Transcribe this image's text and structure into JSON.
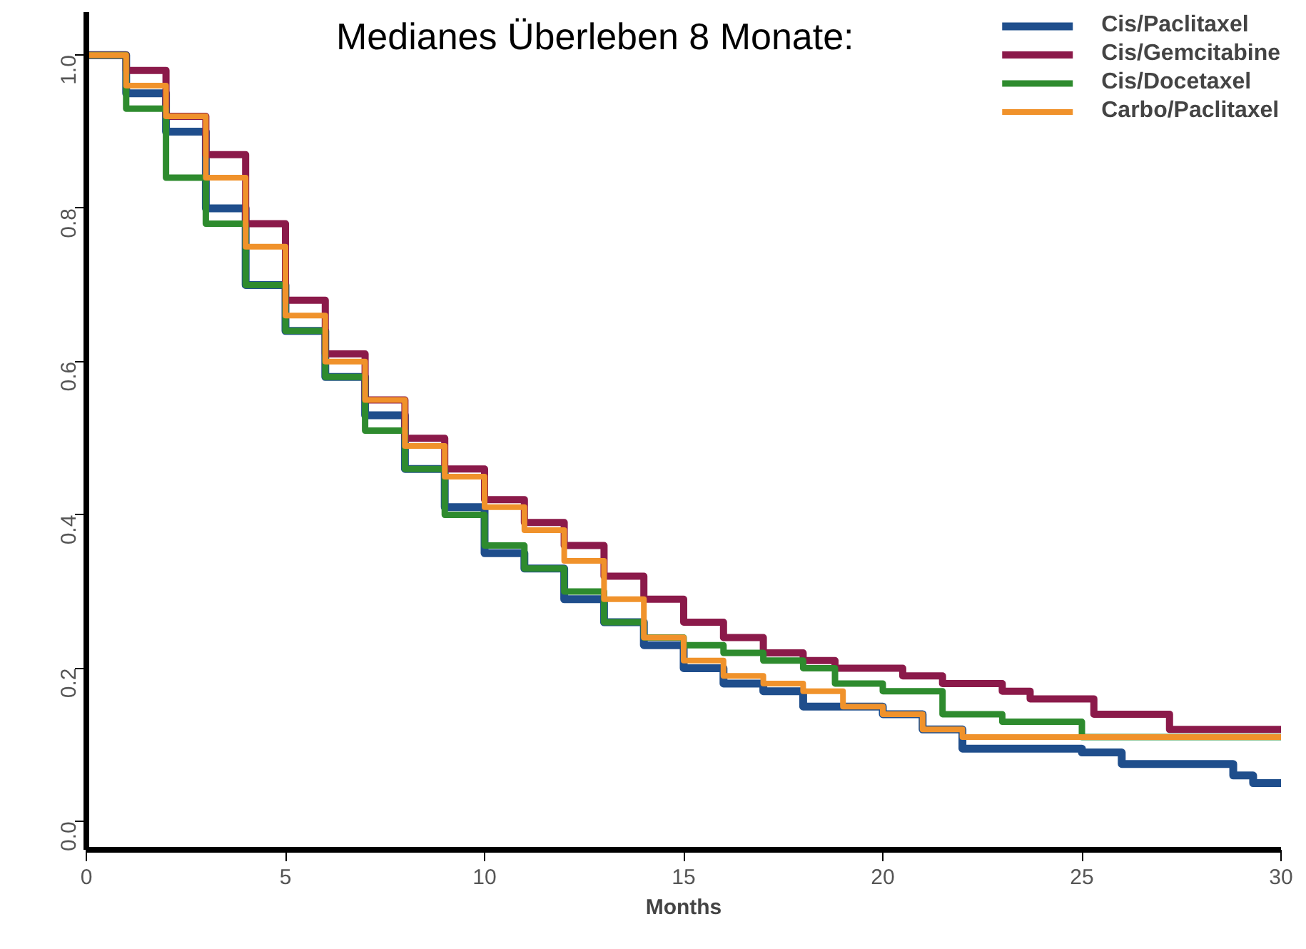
{
  "chart_data": {
    "type": "step",
    "annotations": [
      "Medianes Überleben 8 Monate:"
    ],
    "xlabel": "Months",
    "xlim": [
      0,
      30
    ],
    "ylim": [
      -0.037,
      1.056
    ],
    "xticks": [
      0,
      5,
      10,
      15,
      20,
      25,
      30
    ],
    "yticks": [
      {
        "value": 0,
        "label": "0.0"
      },
      0.2,
      0.4,
      0.6,
      0.8,
      {
        "value": 1,
        "label": "1.0"
      }
    ],
    "grid": false,
    "legend": "top right",
    "marker": "none",
    "line_style": "solid",
    "series": [
      {
        "name": "Cis/Paclitaxel",
        "color": "#1f4e8c",
        "x": [
          0,
          1,
          2,
          3,
          4,
          5,
          6,
          7,
          8,
          9,
          10,
          11,
          12,
          13,
          14,
          15,
          16,
          17,
          18,
          20,
          21,
          22,
          25,
          26,
          28.8,
          29.3,
          30
        ],
        "values": [
          1.0,
          0.95,
          0.9,
          0.8,
          0.7,
          0.64,
          0.58,
          0.53,
          0.46,
          0.41,
          0.35,
          0.33,
          0.29,
          0.26,
          0.23,
          0.2,
          0.18,
          0.17,
          0.15,
          0.14,
          0.12,
          0.095,
          0.09,
          0.075,
          0.06,
          0.05,
          0.05
        ]
      },
      {
        "name": "Cis/Gemcitabine",
        "color": "#8b1a4a",
        "x": [
          0,
          1,
          2,
          3,
          4,
          5,
          6,
          7,
          8,
          9,
          10,
          11,
          12,
          13,
          14,
          15,
          16,
          17,
          18,
          18.8,
          20.5,
          21.5,
          23,
          23.7,
          25.3,
          27.2,
          30
        ],
        "values": [
          1.0,
          0.98,
          0.92,
          0.87,
          0.78,
          0.68,
          0.61,
          0.55,
          0.5,
          0.46,
          0.42,
          0.39,
          0.36,
          0.32,
          0.29,
          0.26,
          0.24,
          0.22,
          0.21,
          0.2,
          0.19,
          0.18,
          0.17,
          0.16,
          0.14,
          0.12,
          0.12
        ]
      },
      {
        "name": "Cis/Docetaxel",
        "color": "#2e8b2e",
        "x": [
          0,
          1,
          2,
          3,
          4,
          5,
          6,
          7,
          8,
          9,
          10,
          11,
          12,
          13,
          14,
          15,
          16,
          17,
          18,
          18.8,
          20,
          21.5,
          23,
          25,
          30
        ],
        "values": [
          1.0,
          0.93,
          0.84,
          0.78,
          0.7,
          0.64,
          0.58,
          0.51,
          0.46,
          0.4,
          0.36,
          0.33,
          0.3,
          0.26,
          0.24,
          0.23,
          0.22,
          0.21,
          0.2,
          0.18,
          0.17,
          0.14,
          0.13,
          0.11,
          0.11
        ]
      },
      {
        "name": "Carbo/Paclitaxel",
        "color": "#f0922b",
        "x": [
          0,
          1,
          2,
          3,
          4,
          5,
          6,
          7,
          8,
          9,
          10,
          11,
          12,
          13,
          14,
          15,
          16,
          17,
          18,
          19,
          20,
          21,
          22,
          30
        ],
        "values": [
          1.0,
          0.96,
          0.92,
          0.84,
          0.75,
          0.66,
          0.6,
          0.55,
          0.49,
          0.45,
          0.41,
          0.38,
          0.34,
          0.29,
          0.24,
          0.21,
          0.19,
          0.18,
          0.17,
          0.15,
          0.14,
          0.12,
          0.11,
          0.11
        ]
      }
    ]
  }
}
